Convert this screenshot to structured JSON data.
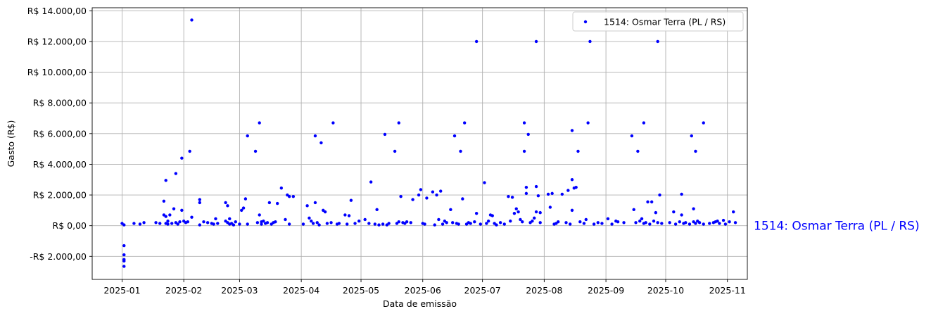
{
  "chart_data": {
    "type": "scatter",
    "xlabel": "Data de emissão",
    "ylabel": "Gasto (R$)",
    "xlim": [
      "2024-12-17",
      "2025-11-11"
    ],
    "ylim": [
      -3500,
      14200
    ],
    "x_ticks": [
      "2025-01-01",
      "2025-02-01",
      "2025-03-01",
      "2025-04-01",
      "2025-05-01",
      "2025-06-01",
      "2025-07-01",
      "2025-08-01",
      "2025-09-01",
      "2025-10-01",
      "2025-11-01"
    ],
    "x_tick_labels": [
      "2025-01",
      "2025-02",
      "2025-03",
      "2025-04",
      "2025-05",
      "2025-06",
      "2025-07",
      "2025-08",
      "2025-09",
      "2025-10",
      "2025-11"
    ],
    "y_ticks": [
      -2000,
      0,
      2000,
      4000,
      6000,
      8000,
      10000,
      12000,
      14000
    ],
    "y_tick_labels": [
      "-R$ 2.000,00",
      "R$ 0,00",
      "R$ 2.000,00",
      "R$ 4.000,00",
      "R$ 6.000,00",
      "R$ 8.000,00",
      "R$ 10.000,00",
      "R$ 12.000,00",
      "R$ 14.000,00"
    ],
    "grid": true,
    "legend_position": "top-right",
    "series": [
      {
        "name": "1514: Osmar Terra (PL / RS)",
        "color": "#0000ff",
        "end_label": "1514: Osmar Terra (PL / RS)",
        "points": [
          [
            "2025-01-01",
            150
          ],
          [
            "2025-01-02",
            -1300
          ],
          [
            "2025-01-02",
            -1900
          ],
          [
            "2025-01-02",
            -2200
          ],
          [
            "2025-01-02",
            -2300
          ],
          [
            "2025-01-02",
            -2650
          ],
          [
            "2025-01-02",
            50
          ],
          [
            "2025-01-07",
            150
          ],
          [
            "2025-01-10",
            100
          ],
          [
            "2025-01-12",
            200
          ],
          [
            "2025-01-18",
            200
          ],
          [
            "2025-01-20",
            150
          ],
          [
            "2025-01-22",
            700
          ],
          [
            "2025-01-22",
            1600
          ],
          [
            "2025-01-23",
            2950
          ],
          [
            "2025-01-23",
            600
          ],
          [
            "2025-01-23",
            150
          ],
          [
            "2025-01-24",
            100
          ],
          [
            "2025-01-24",
            300
          ],
          [
            "2025-01-25",
            700
          ],
          [
            "2025-01-26",
            150
          ],
          [
            "2025-01-27",
            1100
          ],
          [
            "2025-01-28",
            200
          ],
          [
            "2025-01-28",
            3400
          ],
          [
            "2025-01-29",
            100
          ],
          [
            "2025-01-30",
            250
          ],
          [
            "2025-01-31",
            4400
          ],
          [
            "2025-01-31",
            1000
          ],
          [
            "2025-02-01",
            300
          ],
          [
            "2025-02-02",
            200
          ],
          [
            "2025-02-03",
            250
          ],
          [
            "2025-02-04",
            4850
          ],
          [
            "2025-02-05",
            550
          ],
          [
            "2025-02-05",
            13400
          ],
          [
            "2025-02-09",
            1700
          ],
          [
            "2025-02-09",
            1500
          ],
          [
            "2025-02-09",
            50
          ],
          [
            "2025-02-11",
            250
          ],
          [
            "2025-02-13",
            200
          ],
          [
            "2025-02-15",
            150
          ],
          [
            "2025-02-16",
            100
          ],
          [
            "2025-02-17",
            450
          ],
          [
            "2025-02-18",
            150
          ],
          [
            "2025-02-22",
            1500
          ],
          [
            "2025-02-22",
            300
          ],
          [
            "2025-02-23",
            1300
          ],
          [
            "2025-02-23",
            200
          ],
          [
            "2025-02-24",
            100
          ],
          [
            "2025-02-24",
            450
          ],
          [
            "2025-02-25",
            150
          ],
          [
            "2025-02-26",
            50
          ],
          [
            "2025-02-27",
            250
          ],
          [
            "2025-03-01",
            100
          ],
          [
            "2025-03-02",
            1000
          ],
          [
            "2025-03-03",
            1150
          ],
          [
            "2025-03-04",
            1750
          ],
          [
            "2025-03-05",
            5850
          ],
          [
            "2025-03-05",
            100
          ],
          [
            "2025-03-09",
            4850
          ],
          [
            "2025-03-10",
            200
          ],
          [
            "2025-03-11",
            6700
          ],
          [
            "2025-03-11",
            700
          ],
          [
            "2025-03-12",
            250
          ],
          [
            "2025-03-12",
            100
          ],
          [
            "2025-03-13",
            300
          ],
          [
            "2025-03-14",
            150
          ],
          [
            "2025-03-15",
            200
          ],
          [
            "2025-03-16",
            1500
          ],
          [
            "2025-03-17",
            100
          ],
          [
            "2025-03-18",
            200
          ],
          [
            "2025-03-19",
            250
          ],
          [
            "2025-03-20",
            1450
          ],
          [
            "2025-03-22",
            2450
          ],
          [
            "2025-03-24",
            400
          ],
          [
            "2025-03-25",
            2000
          ],
          [
            "2025-03-26",
            1900
          ],
          [
            "2025-03-26",
            100
          ],
          [
            "2025-03-28",
            1900
          ],
          [
            "2025-04-02",
            100
          ],
          [
            "2025-04-04",
            1300
          ],
          [
            "2025-04-05",
            500
          ],
          [
            "2025-04-06",
            300
          ],
          [
            "2025-04-07",
            150
          ],
          [
            "2025-04-08",
            5850
          ],
          [
            "2025-04-08",
            1500
          ],
          [
            "2025-04-09",
            200
          ],
          [
            "2025-04-10",
            50
          ],
          [
            "2025-04-11",
            5400
          ],
          [
            "2025-04-12",
            1000
          ],
          [
            "2025-04-13",
            900
          ],
          [
            "2025-04-14",
            150
          ],
          [
            "2025-04-16",
            200
          ],
          [
            "2025-04-17",
            6700
          ],
          [
            "2025-04-19",
            100
          ],
          [
            "2025-04-20",
            150
          ],
          [
            "2025-04-23",
            700
          ],
          [
            "2025-04-24",
            100
          ],
          [
            "2025-04-25",
            650
          ],
          [
            "2025-04-26",
            1650
          ],
          [
            "2025-04-28",
            150
          ],
          [
            "2025-04-30",
            300
          ],
          [
            "2025-05-03",
            400
          ],
          [
            "2025-05-05",
            150
          ],
          [
            "2025-05-06",
            2850
          ],
          [
            "2025-05-08",
            100
          ],
          [
            "2025-05-09",
            1050
          ],
          [
            "2025-05-10",
            50
          ],
          [
            "2025-05-12",
            100
          ],
          [
            "2025-05-13",
            5950
          ],
          [
            "2025-05-14",
            50
          ],
          [
            "2025-05-15",
            150
          ],
          [
            "2025-05-18",
            4850
          ],
          [
            "2025-05-19",
            150
          ],
          [
            "2025-05-20",
            6700
          ],
          [
            "2025-05-20",
            250
          ],
          [
            "2025-05-21",
            1900
          ],
          [
            "2025-05-22",
            200
          ],
          [
            "2025-05-23",
            150
          ],
          [
            "2025-05-24",
            250
          ],
          [
            "2025-05-26",
            200
          ],
          [
            "2025-05-27",
            1700
          ],
          [
            "2025-05-30",
            2000
          ],
          [
            "2025-05-31",
            2350
          ],
          [
            "2025-06-01",
            150
          ],
          [
            "2025-06-02",
            100
          ],
          [
            "2025-06-03",
            1800
          ],
          [
            "2025-06-06",
            2200
          ],
          [
            "2025-06-07",
            50
          ],
          [
            "2025-06-08",
            2000
          ],
          [
            "2025-06-09",
            400
          ],
          [
            "2025-06-10",
            2250
          ],
          [
            "2025-06-11",
            100
          ],
          [
            "2025-06-12",
            300
          ],
          [
            "2025-06-13",
            200
          ],
          [
            "2025-06-15",
            1050
          ],
          [
            "2025-06-16",
            200
          ],
          [
            "2025-06-17",
            5850
          ],
          [
            "2025-06-18",
            150
          ],
          [
            "2025-06-19",
            100
          ],
          [
            "2025-06-20",
            4850
          ],
          [
            "2025-06-21",
            1750
          ],
          [
            "2025-06-22",
            6700
          ],
          [
            "2025-06-23",
            100
          ],
          [
            "2025-06-24",
            200
          ],
          [
            "2025-06-25",
            150
          ],
          [
            "2025-06-27",
            250
          ],
          [
            "2025-06-28",
            800
          ],
          [
            "2025-06-28",
            12000
          ],
          [
            "2025-06-30",
            100
          ],
          [
            "2025-07-02",
            2800
          ],
          [
            "2025-07-03",
            150
          ],
          [
            "2025-07-04",
            300
          ],
          [
            "2025-07-05",
            700
          ],
          [
            "2025-07-06",
            650
          ],
          [
            "2025-07-07",
            150
          ],
          [
            "2025-07-08",
            50
          ],
          [
            "2025-07-10",
            200
          ],
          [
            "2025-07-12",
            100
          ],
          [
            "2025-07-14",
            1900
          ],
          [
            "2025-07-15",
            300
          ],
          [
            "2025-07-16",
            1850
          ],
          [
            "2025-07-17",
            800
          ],
          [
            "2025-07-18",
            1100
          ],
          [
            "2025-07-19",
            900
          ],
          [
            "2025-07-20",
            400
          ],
          [
            "2025-07-21",
            250
          ],
          [
            "2025-07-22",
            6700
          ],
          [
            "2025-07-22",
            4850
          ],
          [
            "2025-07-23",
            2500
          ],
          [
            "2025-07-23",
            2100
          ],
          [
            "2025-07-24",
            5950
          ],
          [
            "2025-07-25",
            200
          ],
          [
            "2025-07-26",
            300
          ],
          [
            "2025-07-27",
            500
          ],
          [
            "2025-07-28",
            12000
          ],
          [
            "2025-07-28",
            2550
          ],
          [
            "2025-07-28",
            900
          ],
          [
            "2025-07-29",
            1950
          ],
          [
            "2025-07-30",
            850
          ],
          [
            "2025-07-30",
            200
          ],
          [
            "2025-08-03",
            2050
          ],
          [
            "2025-08-04",
            1200
          ],
          [
            "2025-08-05",
            2100
          ],
          [
            "2025-08-06",
            100
          ],
          [
            "2025-08-07",
            150
          ],
          [
            "2025-08-08",
            250
          ],
          [
            "2025-08-10",
            2050
          ],
          [
            "2025-08-12",
            200
          ],
          [
            "2025-08-13",
            2300
          ],
          [
            "2025-08-14",
            100
          ],
          [
            "2025-08-15",
            6200
          ],
          [
            "2025-08-15",
            3000
          ],
          [
            "2025-08-15",
            1000
          ],
          [
            "2025-08-16",
            2450
          ],
          [
            "2025-08-17",
            2500
          ],
          [
            "2025-08-18",
            4850
          ],
          [
            "2025-08-19",
            250
          ],
          [
            "2025-08-21",
            150
          ],
          [
            "2025-08-22",
            400
          ],
          [
            "2025-08-23",
            6700
          ],
          [
            "2025-08-24",
            12000
          ],
          [
            "2025-08-26",
            100
          ],
          [
            "2025-08-28",
            200
          ],
          [
            "2025-08-30",
            150
          ],
          [
            "2025-09-02",
            450
          ],
          [
            "2025-09-04",
            100
          ],
          [
            "2025-09-06",
            300
          ],
          [
            "2025-09-07",
            250
          ],
          [
            "2025-09-10",
            200
          ],
          [
            "2025-09-14",
            5850
          ],
          [
            "2025-09-15",
            1050
          ],
          [
            "2025-09-16",
            200
          ],
          [
            "2025-09-17",
            4850
          ],
          [
            "2025-09-18",
            300
          ],
          [
            "2025-09-19",
            450
          ],
          [
            "2025-09-20",
            6700
          ],
          [
            "2025-09-20",
            150
          ],
          [
            "2025-09-21",
            200
          ],
          [
            "2025-09-22",
            1550
          ],
          [
            "2025-09-23",
            100
          ],
          [
            "2025-09-24",
            1550
          ],
          [
            "2025-09-25",
            300
          ],
          [
            "2025-09-26",
            850
          ],
          [
            "2025-09-27",
            12000
          ],
          [
            "2025-09-27",
            200
          ],
          [
            "2025-09-28",
            2000
          ],
          [
            "2025-09-29",
            150
          ],
          [
            "2025-10-03",
            200
          ],
          [
            "2025-10-05",
            900
          ],
          [
            "2025-10-06",
            100
          ],
          [
            "2025-10-08",
            250
          ],
          [
            "2025-10-09",
            2050
          ],
          [
            "2025-10-09",
            700
          ],
          [
            "2025-10-10",
            150
          ],
          [
            "2025-10-11",
            200
          ],
          [
            "2025-10-13",
            100
          ],
          [
            "2025-10-14",
            5850
          ],
          [
            "2025-10-15",
            1100
          ],
          [
            "2025-10-15",
            250
          ],
          [
            "2025-10-16",
            4850
          ],
          [
            "2025-10-16",
            150
          ],
          [
            "2025-10-17",
            300
          ],
          [
            "2025-10-18",
            200
          ],
          [
            "2025-10-20",
            6700
          ],
          [
            "2025-10-20",
            100
          ],
          [
            "2025-10-23",
            150
          ],
          [
            "2025-10-25",
            200
          ],
          [
            "2025-10-26",
            250
          ],
          [
            "2025-10-27",
            300
          ],
          [
            "2025-10-28",
            150
          ],
          [
            "2025-10-30",
            350
          ],
          [
            "2025-10-31",
            100
          ],
          [
            "2025-11-02",
            250
          ],
          [
            "2025-11-04",
            900
          ],
          [
            "2025-11-05",
            200
          ]
        ]
      }
    ]
  }
}
